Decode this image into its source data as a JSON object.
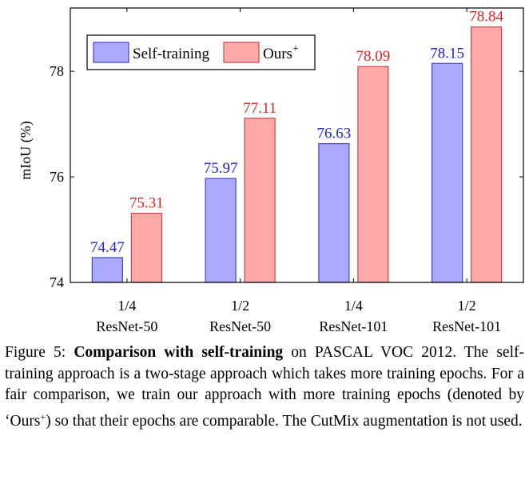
{
  "chart_data": {
    "type": "bar",
    "categories": [
      {
        "line1": "1/4",
        "line2": "ResNet-50"
      },
      {
        "line1": "1/2",
        "line2": "ResNet-50"
      },
      {
        "line1": "1/4",
        "line2": "ResNet-101"
      },
      {
        "line1": "1/2",
        "line2": "ResNet-101"
      }
    ],
    "series": [
      {
        "name": "Self-training",
        "values": [
          74.47,
          75.97,
          76.63,
          78.15
        ],
        "labels": [
          "74.47",
          "75.97",
          "76.63",
          "78.15"
        ],
        "fill": "#aaaaff",
        "stroke": "#4444cc",
        "label_color": "#2222dd"
      },
      {
        "name": "Ours",
        "name_sup": "+",
        "values": [
          75.31,
          77.11,
          78.09,
          78.84
        ],
        "labels": [
          "75.31",
          "77.11",
          "78.09",
          "78.84"
        ],
        "fill": "#ffaaaa",
        "stroke": "#cc4444",
        "label_color": "#dd2222"
      }
    ],
    "ylabel": "mIoU (%)",
    "ylim": [
      74,
      79.2
    ],
    "yticks": [
      74,
      76,
      78
    ],
    "ytick_labels": [
      "74",
      "76",
      "78"
    ],
    "grid": false,
    "legend_position": "top-left"
  },
  "caption": {
    "label": "Figure 5:",
    "bold": "Comparison with self-training",
    "text_before_sup": " on PASCAL VOC 2012. The self-training approach is a two-stage approach which takes more training epochs. For a fair comparison, we train our approach with more training epochs (denoted by ‘Ours",
    "sup": "+",
    "text_after_sup": ") so that their epochs are comparable. The CutMix augmentation is not used."
  }
}
